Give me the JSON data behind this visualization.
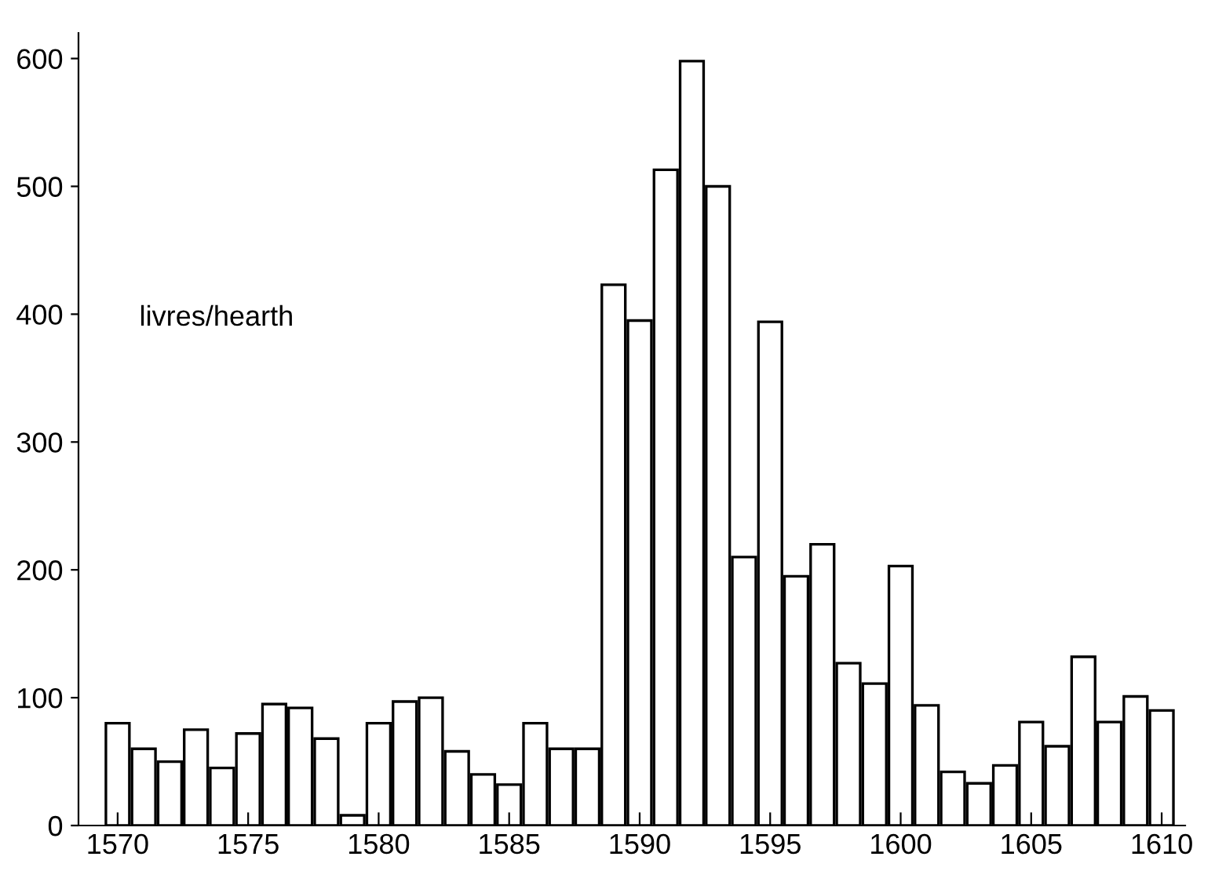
{
  "chart_data": {
    "type": "bar",
    "ylabel": "livres/hearth",
    "x": [
      1570,
      1571,
      1572,
      1573,
      1574,
      1575,
      1576,
      1577,
      1578,
      1579,
      1580,
      1581,
      1582,
      1583,
      1584,
      1585,
      1586,
      1587,
      1588,
      1589,
      1590,
      1591,
      1592,
      1593,
      1594,
      1595,
      1596,
      1597,
      1598,
      1599,
      1600,
      1601,
      1602,
      1603,
      1604,
      1605,
      1606,
      1607,
      1608,
      1609,
      1610
    ],
    "values": [
      80,
      60,
      50,
      75,
      45,
      72,
      95,
      92,
      68,
      8,
      80,
      97,
      100,
      58,
      40,
      32,
      80,
      60,
      60,
      423,
      395,
      513,
      598,
      500,
      210,
      394,
      195,
      220,
      127,
      111,
      203,
      94,
      42,
      33,
      47,
      81,
      62,
      132,
      81,
      101,
      90
    ],
    "color": "#ffffff",
    "xlim": [
      1568.5,
      1610.9
    ],
    "xticks": [
      1570,
      1575,
      1580,
      1585,
      1590,
      1595,
      1600,
      1605,
      1610
    ],
    "ylim": [
      0,
      620
    ],
    "yticks": [
      0,
      100,
      200,
      300,
      400,
      500,
      600
    ],
    "grid": false,
    "legend": false
  }
}
